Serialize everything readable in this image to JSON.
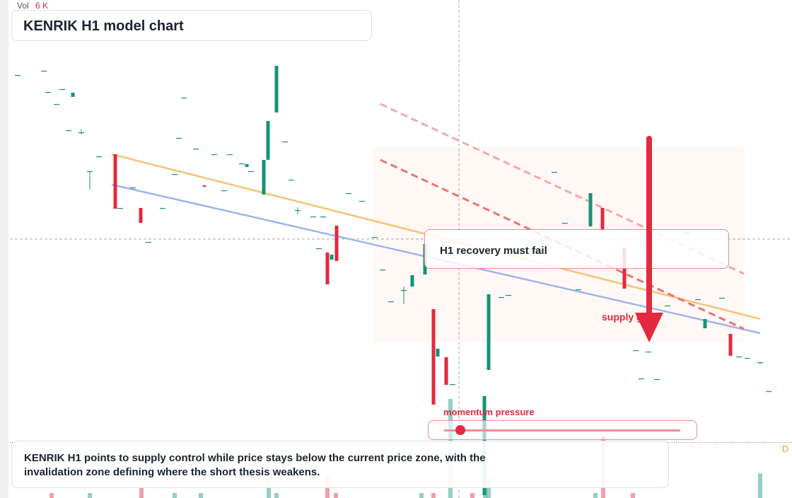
{
  "chart_data": {
    "type": "candlestick",
    "title": "KENRIK H1 model chart",
    "volume_label": "Vol",
    "volume_value": "6 K",
    "annotation": "H1 recovery must fail",
    "zone_label": "supply gap",
    "indicator_label": "momentum pressure",
    "level_label": "D",
    "description": "KENRIK H1 points to supply control while price stays below the current price zone, with the invalidation zone defining where the short thesis weakens.",
    "xlim": [
      14,
      1120
    ],
    "ylim": [
      100,
      170
    ],
    "vlim": [
      0,
      6000
    ],
    "up_color": "#14937a",
    "down_color": "#e3293f",
    "candles": [
      [
        25,
        159.46,
        159.46,
        159.46,
        159.46
      ],
      [
        62,
        160.06,
        160.06,
        160.06,
        160.06
      ],
      [
        68,
        157.07,
        157.07,
        157.07,
        157.07
      ],
      [
        80,
        155.38,
        155.38,
        155.38,
        155.38
      ],
      [
        88,
        157.47,
        157.47,
        157.47,
        157.47
      ],
      [
        103,
        156.38,
        156.97,
        156.38,
        156.97
      ],
      [
        97,
        151.7,
        151.7,
        151.7,
        151.7
      ],
      [
        115,
        151.41,
        151.8,
        151.11,
        151.41
      ],
      [
        127,
        145.94,
        145.94,
        143.35,
        145.94
      ],
      [
        140,
        148.03,
        148.03,
        148.03,
        148.03
      ],
      [
        163,
        148.32,
        148.32,
        140.67,
        140.67
      ],
      [
        170,
        140.77,
        140.77,
        140.77,
        140.77
      ],
      [
        188,
        143.65,
        143.65,
        143.65,
        143.65
      ],
      [
        199,
        140.77,
        140.77,
        138.68,
        138.68
      ],
      [
        210,
        135.99,
        135.99,
        135.99,
        135.99
      ],
      [
        230,
        140.77,
        140.77,
        140.77,
        140.77
      ],
      [
        247,
        145.54,
        145.54,
        145.54,
        145.54
      ],
      [
        260,
        156.28,
        156.28,
        156.28,
        156.28
      ],
      [
        253,
        150.61,
        150.61,
        150.61,
        150.61
      ],
      [
        277,
        149.12,
        149.12,
        149.12,
        149.12
      ],
      [
        289,
        143.95,
        143.95,
        143.75,
        143.75
      ],
      [
        303,
        148.32,
        148.32,
        148.32,
        148.32
      ],
      [
        317,
        143.25,
        143.25,
        143.25,
        143.25
      ],
      [
        325,
        148.32,
        148.32,
        148.32,
        148.32
      ],
      [
        342,
        147.03,
        147.03,
        147.03,
        147.03
      ],
      [
        349,
        146.53,
        146.93,
        146.53,
        146.93
      ],
      [
        355,
        145.94,
        145.94,
        145.94,
        145.94
      ],
      [
        373,
        142.66,
        147.53,
        142.66,
        147.53
      ],
      [
        379,
        147.53,
        153.0,
        147.53,
        153.0
      ],
      [
        391,
        154.19,
        160.75,
        154.19,
        160.75
      ],
      [
        403,
        150.11,
        150.11,
        150.11,
        150.11
      ],
      [
        412,
        144.74,
        144.74,
        144.74,
        144.74
      ],
      [
        421,
        140.47,
        140.87,
        139.87,
        140.47
      ],
      [
        443,
        139.57,
        139.57,
        139.57,
        139.57
      ],
      [
        457,
        139.57,
        139.57,
        139.57,
        139.57
      ],
      [
        451,
        135.1,
        135.1,
        135.1,
        135.1
      ],
      [
        463,
        134.5,
        134.5,
        130.03,
        130.03
      ],
      [
        469,
        133.51,
        134.21,
        133.51,
        134.21
      ],
      [
        476,
        138.28,
        138.28,
        133.31,
        133.31
      ],
      [
        493,
        142.86,
        142.86,
        142.86,
        142.86
      ],
      [
        512,
        141.76,
        141.76,
        141.76,
        141.76
      ],
      [
        530,
        136.69,
        136.69,
        136.69,
        136.69
      ],
      [
        541,
        132.12,
        132.12,
        132.12,
        132.12
      ],
      [
        553,
        127.64,
        127.64,
        127.64,
        127.64
      ],
      [
        571,
        129.23,
        129.73,
        127.24,
        129.23
      ],
      [
        583,
        129.73,
        131.32,
        129.73,
        131.32
      ],
      [
        601,
        131.42,
        135.7,
        131.42,
        135.7
      ],
      [
        613,
        126.55,
        126.55,
        113.13,
        113.13
      ],
      [
        619,
        119.89,
        120.98,
        119.89,
        120.98
      ],
      [
        631,
        119.79,
        119.79,
        115.91,
        115.91
      ],
      [
        640,
        116.01,
        116.01,
        116.01,
        116.01
      ],
      [
        685,
        100.4,
        114.32,
        100.4,
        114.32
      ],
      [
        691,
        118.0,
        128.64,
        118.0,
        128.64
      ],
      [
        709,
        128.24,
        128.24,
        128.24,
        128.24
      ],
      [
        719,
        128.54,
        128.54,
        128.54,
        128.54
      ],
      [
        784,
        145.84,
        145.84,
        145.84,
        145.84
      ],
      [
        799,
        138.68,
        138.68,
        138.68,
        138.68
      ],
      [
        818,
        129.33,
        129.33,
        129.33,
        129.33
      ],
      [
        835,
        138.18,
        142.86,
        138.18,
        142.86
      ],
      [
        852,
        140.77,
        140.77,
        137.78,
        137.78
      ],
      [
        883,
        135.2,
        135.2,
        129.43,
        129.43
      ],
      [
        899,
        120.78,
        120.78,
        120.78,
        120.78
      ],
      [
        917,
        120.58,
        120.58,
        120.58,
        120.58
      ],
      [
        907,
        116.81,
        116.81,
        116.81,
        116.81
      ],
      [
        929,
        116.71,
        116.71,
        116.71,
        116.71
      ],
      [
        944,
        127.05,
        127.05,
        127.05,
        127.05
      ],
      [
        971,
        137.29,
        137.29,
        137.29,
        137.29
      ],
      [
        987,
        127.94,
        127.94,
        127.94,
        127.94
      ],
      [
        997,
        123.86,
        125.16,
        123.86,
        125.16
      ],
      [
        1021,
        128.14,
        128.14,
        128.14,
        128.14
      ],
      [
        1033,
        123.07,
        123.07,
        119.99,
        119.99
      ],
      [
        1045,
        119.89,
        119.89,
        119.89,
        119.89
      ],
      [
        1057,
        119.69,
        119.69,
        119.69,
        119.69
      ],
      [
        1075,
        119.09,
        119.09,
        118.79,
        119.09
      ],
      [
        1087,
        115.02,
        115.02,
        115.02,
        115.02
      ]
    ],
    "volume_up": [
      [
        637,
        6000
      ],
      [
        686,
        1300
      ],
      [
        691,
        1300
      ],
      [
        380,
        1130
      ],
      [
        1075,
        1480
      ],
      [
        391,
        300
      ],
      [
        127,
        300
      ],
      [
        247,
        300
      ],
      [
        284,
        300
      ],
      [
        596,
        300
      ],
      [
        842,
        300
      ]
    ],
    "volume_down": [
      [
        853,
        3700
      ],
      [
        463,
        1370
      ],
      [
        200,
        600
      ],
      [
        73,
        300
      ],
      [
        613,
        300
      ],
      [
        668,
        300
      ],
      [
        895,
        300
      ],
      [
        475,
        300
      ]
    ],
    "trendlines": [
      {
        "color": "#f7c27a",
        "dash": false,
        "points": [
          [
            158,
            148.32
          ],
          [
            1075,
            125.16
          ]
        ]
      },
      {
        "color": "#9fb4ee",
        "dash": false,
        "points": [
          [
            158,
            144.05
          ],
          [
            1075,
            123.17
          ]
        ]
      },
      {
        "color": "#f2aaaa",
        "dash": true,
        "points": [
          [
            538,
            155.38
          ],
          [
            1052,
            131.52
          ]
        ]
      },
      {
        "color": "#e77575",
        "dash": true,
        "points": [
          [
            538,
            147.53
          ],
          [
            1052,
            123.77
          ]
        ]
      }
    ],
    "crosshair": [
      649,
      136.4
    ],
    "level": 107.8
  }
}
